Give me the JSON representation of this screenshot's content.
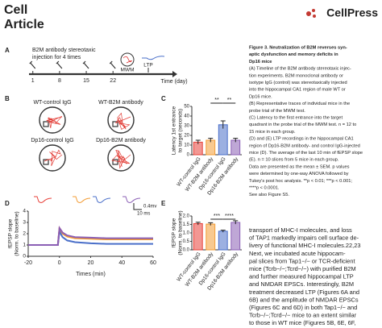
{
  "header": {
    "journal": "Cell",
    "section": "Article",
    "publisher": "CellPress"
  },
  "figure": {
    "A": {
      "letter": "A",
      "caption": [
        "B2M antibody stereotaxic",
        "injection for 4 times"
      ],
      "days": [
        1,
        8,
        15,
        22
      ],
      "xlim": [
        0,
        38
      ],
      "events": [
        "MWM",
        "LTP"
      ],
      "xlabel": "Time (day)"
    },
    "B": {
      "letter": "B",
      "groups": [
        "WT-control IgG",
        "WT-B2M antibody",
        "Dp16-control IgG",
        "Dp16-B2M antibody"
      ]
    },
    "C": {
      "letter": "C",
      "type": "bar",
      "ylabel": [
        "Latency 1st entrance",
        "to target (seconds)"
      ],
      "categories": [
        "WT-control IgG",
        "WT-B2M antibody",
        "Dp16-control IgG",
        "Dp16-B2M antibody"
      ],
      "colors": [
        "#e8413a",
        "#f39c34",
        "#4a6fc9",
        "#8b5fb5"
      ],
      "values": [
        13,
        15,
        31,
        15
      ],
      "errors": [
        2,
        2,
        4,
        2
      ],
      "ylim": [
        0,
        50
      ],
      "yticks": [
        0,
        10,
        20,
        30,
        40,
        50
      ],
      "significance": [
        "**",
        "**"
      ]
    },
    "D": {
      "letter": "D",
      "type": "line",
      "xlabel": "Times (min)",
      "ylabel": [
        "fEPSP slope",
        "(Norm. to baseline)"
      ],
      "x": [
        -20,
        -10,
        -1,
        0,
        2,
        5,
        10,
        20,
        30,
        40,
        50,
        60
      ],
      "series": [
        {
          "color": "#e8413a",
          "values": [
            1,
            1,
            1,
            2.5,
            2.1,
            1.8,
            1.65,
            1.6,
            1.55,
            1.55,
            1.55,
            1.55
          ]
        },
        {
          "color": "#f39c34",
          "values": [
            1,
            1,
            1,
            2.4,
            2.0,
            1.75,
            1.6,
            1.55,
            1.5,
            1.5,
            1.5,
            1.5
          ]
        },
        {
          "color": "#4a6fc9",
          "values": [
            1,
            1,
            1,
            2.2,
            1.7,
            1.4,
            1.25,
            1.15,
            1.1,
            1.1,
            1.1,
            1.1
          ]
        },
        {
          "color": "#8b5fb5",
          "values": [
            1,
            1,
            1,
            2.5,
            2.1,
            1.85,
            1.7,
            1.65,
            1.6,
            1.6,
            1.6,
            1.6
          ]
        }
      ],
      "xlim": [
        -20,
        60
      ],
      "xticks": [
        -20,
        0,
        20,
        40,
        60
      ],
      "ylim": [
        0,
        4
      ],
      "yticks": [
        0,
        1,
        2,
        3,
        4
      ],
      "scale": [
        "0.4mv",
        "10 ms"
      ]
    },
    "E": {
      "letter": "E",
      "type": "bar",
      "ylabel": [
        "fEPSP slope",
        "(Norm. to baseline)"
      ],
      "categories": [
        "WT-control IgG",
        "WT-B2M antibody",
        "Dp16-control IgG",
        "Dp16-B2M antibody"
      ],
      "colors": [
        "#e8413a",
        "#f39c34",
        "#4a6fc9",
        "#8b5fb5"
      ],
      "values": [
        1.55,
        1.52,
        1.1,
        1.62
      ],
      "errors": [
        0.08,
        0.08,
        0.06,
        0.1
      ],
      "ylim": [
        0,
        2
      ],
      "yticks": [
        {
          "value": 0,
          "label": "0.0"
        },
        {
          "value": 0.5,
          "label": "0.5"
        },
        {
          "value": 1,
          "label": "1.0"
        },
        {
          "value": 1.5,
          "label": "1.5"
        },
        {
          "value": 2,
          "label": "2.0"
        }
      ],
      "significance": [
        "***",
        "****"
      ]
    }
  },
  "caption": {
    "lines": [
      "Figure 3. Neutralization of B2M reverses syn-",
      "aptic dysfunction and memory deficits in",
      "Dp16 mice",
      "(A) Timeline of the B2M antibody stereotaxic injec-",
      "tion experiments. B2M monoclonal antibody or",
      "isotype IgG (control) was stereotaxically injected",
      "into the hippocampal CA1 region of male WT or",
      "Dp16 mice.",
      "(B) Representative traces of individual mice in the",
      "probe trial of the MWM test.",
      "(C) Latency to the first entrance into the target",
      "quadrant in the probe trial of the MWM test. n = 12 to",
      "15 mice in each group.",
      "(D) and (E) LTP recordings in the hippocampal CA1",
      "region of Dp16-B2M antibody- and control IgG-injected",
      "mice (D). The average of the last 10 min of fEPSP slope",
      "(E). n = 10 slices from 5 mice in each group.",
      "Data are presented as the mean ± SEM. p values",
      "were determined by one-way ANOVA followed by",
      "Tukey's post hoc analysis. **p < 0.01; ***p < 0.001;",
      "****p < 0.0001.",
      "See also Figure S5."
    ]
  },
  "body": {
    "lines": [
      "transport of MHC-I molecules, and loss",
      "of TAP1 markedly impairs cell surface de-",
      "livery of functional MHC-I molecules.22,23",
      "Next, we incubated acute hippocam-",
      "pal slices from Tap1−/− or TCR-deficient",
      "mice (Tcrb−/−;Tcrd−/−) with purified B2M",
      "and further measured hippocampal LTP",
      "and NMDAR EPSCs. Interestingly, B2M",
      "treatment decreased LTP (Figures 6A and",
      "6B) and the amplitude of NMDAR EPSCs",
      "(Figures 6C and 6D) in both Tap1−/− and",
      "Tcrb−/−;Tcrd−/− mice to an extent similar",
      "to those in WT mice (Figures 5B, 6E, 6F,"
    ]
  }
}
